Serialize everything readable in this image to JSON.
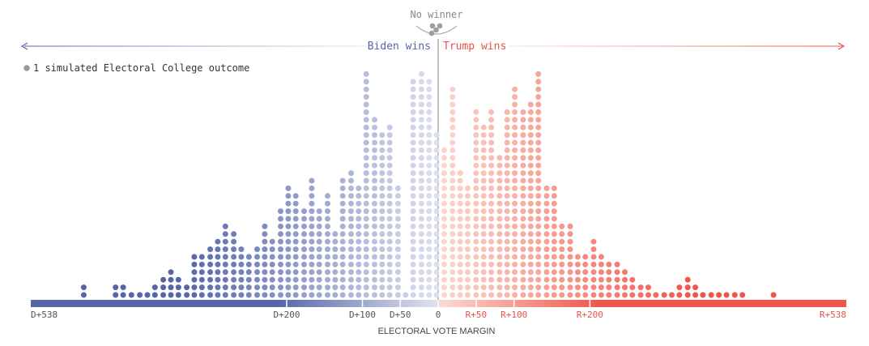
{
  "header": {
    "no_winner_label": "No winner",
    "left_label": "Biden wins",
    "right_label": "Trump wins"
  },
  "legend": {
    "text": "1 simulated Electoral College outcome",
    "dot_color": "#9a9a9a"
  },
  "colors": {
    "biden_dark": "#5565a8",
    "biden_light": "#dde0ef",
    "trump_light": "#fbd8cf",
    "trump_dark": "#f0554a",
    "no_winner_dot": "#9e9e9e",
    "axis_text": "#555555",
    "biden_text": "#5565a8",
    "trump_text": "#e5534b"
  },
  "chart_data": {
    "type": "dot histogram",
    "xlabel": "ELECTORAL VOTE MARGIN",
    "x_range": [
      -538,
      538
    ],
    "ticks": [
      {
        "value": -538,
        "label": "D+538"
      },
      {
        "value": -200,
        "label": "D+200"
      },
      {
        "value": -100,
        "label": "D+100"
      },
      {
        "value": -50,
        "label": "D+50"
      },
      {
        "value": 0,
        "label": "0"
      },
      {
        "value": 50,
        "label": "R+50"
      },
      {
        "value": 100,
        "label": "R+100"
      },
      {
        "value": 200,
        "label": "R+200"
      },
      {
        "value": 538,
        "label": "R+538"
      }
    ],
    "series": [
      {
        "x": [
          -468,
          -426,
          -416,
          -405,
          -394,
          -384,
          -374,
          -363,
          -353,
          -343,
          -332,
          -322,
          -312,
          -301,
          -291,
          -281,
          -270,
          -260,
          -250,
          -239,
          -229,
          -219,
          -208,
          -198,
          -188,
          -177,
          -167,
          -157,
          -146,
          -136,
          -126,
          -115,
          -105,
          -95,
          -84,
          -74,
          -64,
          -53,
          -43,
          -33,
          -22,
          -12,
          -2,
          8,
          19,
          29,
          39,
          50,
          60,
          70,
          81,
          91,
          101,
          112,
          122,
          132,
          143,
          153,
          163,
          174,
          184,
          194,
          205,
          215,
          225,
          236,
          246,
          256,
          267,
          277,
          287,
          298,
          308,
          318,
          329,
          339,
          349,
          360,
          370,
          380,
          391,
          401,
          442
        ],
        "counts": [
          2,
          2,
          2,
          1,
          1,
          1,
          2,
          3,
          4,
          3,
          2,
          6,
          6,
          7,
          8,
          10,
          9,
          7,
          6,
          7,
          10,
          8,
          12,
          15,
          14,
          12,
          16,
          12,
          14,
          9,
          16,
          17,
          15,
          30,
          24,
          22,
          23,
          15,
          1,
          29,
          30,
          29,
          22,
          20,
          28,
          17,
          15,
          25,
          23,
          25,
          19,
          25,
          28,
          25,
          26,
          30,
          15,
          15,
          10,
          10,
          6,
          6,
          8,
          6,
          5,
          5,
          4,
          3,
          2,
          2,
          1,
          1,
          1,
          2,
          3,
          2,
          1,
          1,
          1,
          1,
          1,
          1,
          1
        ]
      }
    ],
    "no_winner_count": 4
  }
}
